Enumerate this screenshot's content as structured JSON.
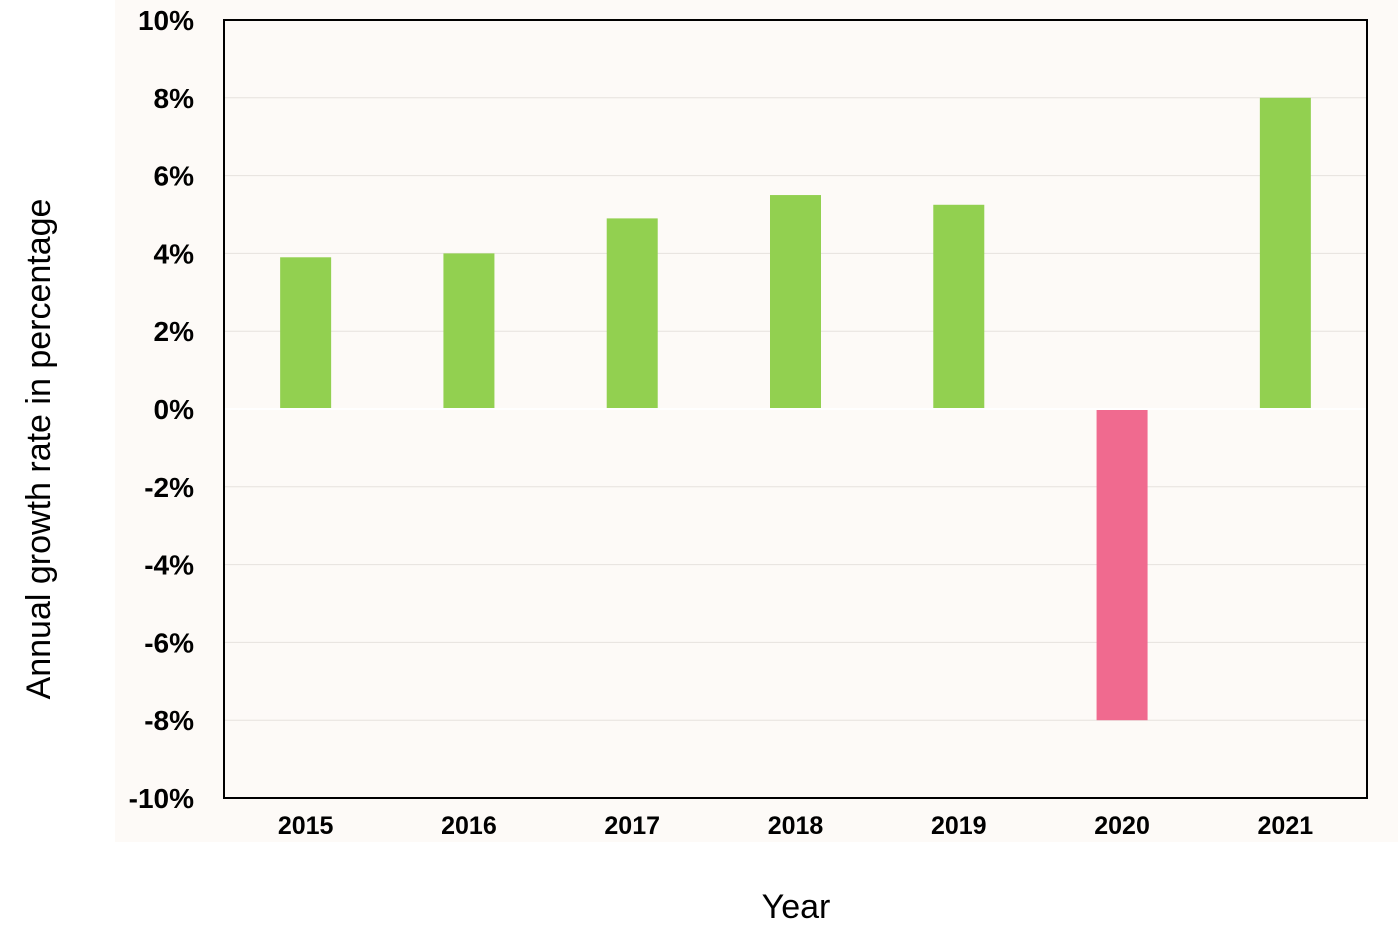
{
  "chart_data": {
    "type": "bar",
    "categories": [
      "2015",
      "2016",
      "2017",
      "2018",
      "2019",
      "2020",
      "2021"
    ],
    "values": [
      3.9,
      4.0,
      4.9,
      5.5,
      5.25,
      -8.0,
      8.0
    ],
    "title": "",
    "xlabel": "Year",
    "ylabel": "Annual growth rate in percentage",
    "ylim": [
      -10,
      10
    ],
    "yticks": [
      10,
      8,
      6,
      4,
      2,
      0,
      -2,
      -4,
      -6,
      -8,
      -10
    ],
    "ytick_labels": [
      "10%",
      "8%",
      "6%",
      "4%",
      "2%",
      "0%",
      "-2%",
      "-4%",
      "-6%",
      "-8%",
      "-10%"
    ],
    "grid": true,
    "legend": "none",
    "colors": {
      "positive": "#92D050",
      "negative": "#F06A8F",
      "plot_background": "#FDFAF7",
      "gridline": "#E6E2DE"
    }
  }
}
